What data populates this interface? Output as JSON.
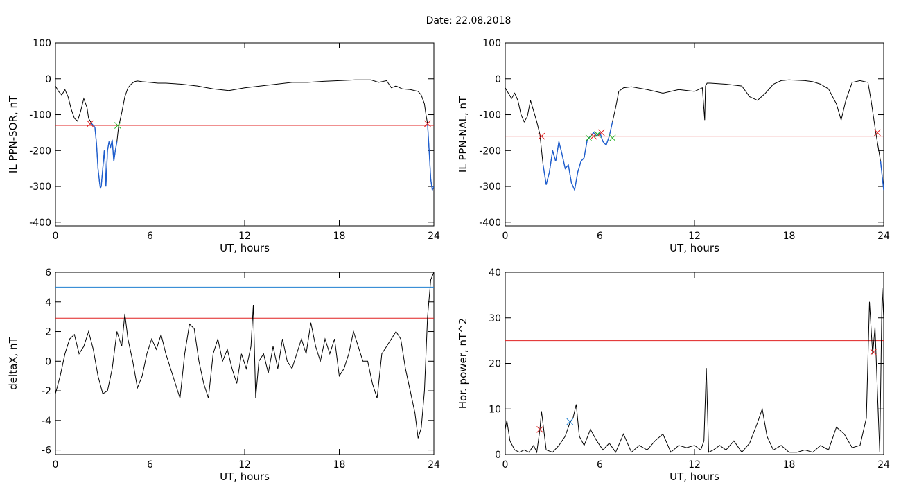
{
  "figure": {
    "title": "Date:  22.08.2018"
  },
  "chart_data": [
    {
      "type": "line",
      "xlabel": "UT, hours",
      "ylabel": "IL PPN-SOR, nT",
      "xlim": [
        0,
        24
      ],
      "ylim": [
        -410,
        100
      ],
      "xticks": [
        0,
        6,
        12,
        18,
        24
      ],
      "yticks": [
        100,
        0,
        -100,
        -200,
        -300,
        -400
      ],
      "grid": false,
      "x": [
        0,
        0.2,
        0.4,
        0.6,
        0.8,
        1.0,
        1.2,
        1.4,
        1.6,
        1.8,
        2.0,
        2.1,
        2.3,
        2.5,
        2.6,
        2.7,
        2.8,
        2.85,
        2.9,
        3.0,
        3.1,
        3.15,
        3.2,
        3.3,
        3.4,
        3.5,
        3.6,
        3.7,
        3.8,
        3.9,
        4.0,
        4.2,
        4.4,
        4.6,
        4.8,
        5.0,
        5.2,
        5.5,
        6.0,
        6.5,
        7.0,
        8.0,
        9.0,
        10.0,
        11.0,
        12.0,
        13.0,
        14.0,
        15.0,
        16.0,
        17.0,
        18.0,
        19.0,
        20.0,
        20.5,
        21.0,
        21.3,
        21.6,
        22.0,
        22.5,
        23.0,
        23.2,
        23.4,
        23.5,
        23.6,
        23.7,
        23.8,
        23.9,
        24.0
      ],
      "y": [
        -20,
        -35,
        -45,
        -30,
        -50,
        -85,
        -110,
        -118,
        -90,
        -55,
        -80,
        -110,
        -125,
        -135,
        -180,
        -250,
        -290,
        -305,
        -300,
        -250,
        -200,
        -240,
        -300,
        -200,
        -175,
        -190,
        -170,
        -230,
        -200,
        -175,
        -135,
        -95,
        -50,
        -25,
        -15,
        -8,
        -6,
        -8,
        -10,
        -12,
        -12,
        -15,
        -20,
        -28,
        -33,
        -25,
        -20,
        -15,
        -10,
        -10,
        -7,
        -5,
        -3,
        -3,
        -10,
        -5,
        -25,
        -20,
        -28,
        -30,
        -35,
        -45,
        -70,
        -100,
        -125,
        -200,
        -280,
        -310,
        -300
      ],
      "threshold": -130,
      "markers": [
        {
          "x": 2.2,
          "y": -125,
          "color": "#e02020"
        },
        {
          "x": 3.95,
          "y": -130,
          "color": "#20b020"
        },
        {
          "x": 23.6,
          "y": -125,
          "color": "#e02020"
        }
      ],
      "highlight_ranges": [
        [
          2.2,
          3.95
        ],
        [
          23.6,
          24.0
        ]
      ],
      "colors": {
        "line": "#000000",
        "threshold": "#e02020",
        "highlight": "#1f5fd0"
      }
    },
    {
      "type": "line",
      "xlabel": "UT, hours",
      "ylabel": "IL PPN-NAL, nT",
      "xlim": [
        0,
        24
      ],
      "ylim": [
        -410,
        100
      ],
      "xticks": [
        0,
        6,
        12,
        18,
        24
      ],
      "yticks": [
        100,
        0,
        -100,
        -200,
        -300,
        -400
      ],
      "grid": false,
      "x": [
        0,
        0.2,
        0.4,
        0.6,
        0.8,
        1.0,
        1.2,
        1.4,
        1.6,
        1.8,
        2.0,
        2.2,
        2.4,
        2.6,
        2.8,
        3.0,
        3.2,
        3.4,
        3.6,
        3.8,
        4.0,
        4.2,
        4.4,
        4.6,
        4.8,
        5.0,
        5.2,
        5.4,
        5.6,
        5.8,
        6.0,
        6.2,
        6.4,
        6.6,
        6.8,
        7.0,
        7.2,
        7.5,
        8.0,
        9.0,
        10.0,
        11.0,
        12.0,
        12.5,
        12.65,
        12.7,
        12.8,
        13.0,
        14.0,
        15.0,
        15.5,
        16.0,
        16.5,
        17.0,
        17.5,
        18.0,
        19.0,
        19.5,
        20.0,
        20.5,
        21.0,
        21.3,
        21.6,
        22.0,
        22.5,
        23.0,
        23.2,
        23.5,
        23.8,
        24.0
      ],
      "y": [
        -25,
        -40,
        -55,
        -40,
        -60,
        -100,
        -120,
        -105,
        -60,
        -90,
        -120,
        -155,
        -240,
        -295,
        -260,
        -200,
        -230,
        -175,
        -210,
        -250,
        -240,
        -290,
        -310,
        -260,
        -230,
        -220,
        -170,
        -160,
        -150,
        -160,
        -150,
        -175,
        -185,
        -160,
        -120,
        -80,
        -35,
        -25,
        -22,
        -30,
        -40,
        -30,
        -35,
        -25,
        -115,
        -20,
        -12,
        -12,
        -15,
        -20,
        -50,
        -60,
        -40,
        -15,
        -5,
        -3,
        -5,
        -8,
        -15,
        -28,
        -70,
        -115,
        -60,
        -10,
        -5,
        -10,
        -60,
        -150,
        -230,
        -310
      ],
      "threshold": -160,
      "markers": [
        {
          "x": 2.3,
          "y": -160,
          "color": "#e02020"
        },
        {
          "x": 5.3,
          "y": -165,
          "color": "#20b020"
        },
        {
          "x": 5.6,
          "y": -160,
          "color": "#e02020"
        },
        {
          "x": 5.85,
          "y": -155,
          "color": "#20b020"
        },
        {
          "x": 6.1,
          "y": -150,
          "color": "#e02020"
        },
        {
          "x": 6.8,
          "y": -165,
          "color": "#20b020"
        },
        {
          "x": 23.6,
          "y": -150,
          "color": "#e02020"
        }
      ],
      "highlight_ranges": [
        [
          2.3,
          6.8
        ],
        [
          23.6,
          24.0
        ]
      ],
      "colors": {
        "line": "#000000",
        "threshold": "#e02020",
        "highlight": "#1f5fd0"
      }
    },
    {
      "type": "line",
      "xlabel": "UT, hours",
      "ylabel": "deltaX, nT",
      "xlim": [
        0,
        24
      ],
      "ylim": [
        -6.3,
        6.0
      ],
      "xticks": [
        0,
        6,
        12,
        18,
        24
      ],
      "yticks": [
        6,
        4,
        2,
        0,
        -2,
        -4,
        -6
      ],
      "grid": false,
      "x": [
        0,
        0.3,
        0.6,
        0.9,
        1.2,
        1.5,
        1.8,
        2.1,
        2.4,
        2.7,
        3.0,
        3.3,
        3.6,
        3.9,
        4.2,
        4.4,
        4.6,
        4.9,
        5.2,
        5.5,
        5.8,
        6.1,
        6.4,
        6.7,
        7.0,
        7.3,
        7.6,
        7.9,
        8.2,
        8.5,
        8.8,
        9.1,
        9.4,
        9.7,
        10.0,
        10.3,
        10.6,
        10.9,
        11.2,
        11.5,
        11.8,
        12.1,
        12.4,
        12.55,
        12.7,
        12.9,
        13.2,
        13.5,
        13.8,
        14.1,
        14.4,
        14.7,
        15.0,
        15.3,
        15.6,
        15.9,
        16.2,
        16.5,
        16.8,
        17.1,
        17.4,
        17.7,
        18.0,
        18.3,
        18.6,
        18.9,
        19.2,
        19.5,
        19.8,
        20.1,
        20.4,
        20.7,
        21.0,
        21.3,
        21.6,
        21.9,
        22.2,
        22.5,
        22.8,
        23.0,
        23.2,
        23.4,
        23.6,
        23.8,
        24.0
      ],
      "y": [
        -2.2,
        -1.0,
        0.5,
        1.5,
        1.8,
        0.5,
        1.0,
        2.0,
        0.8,
        -1.0,
        -2.2,
        -2.0,
        -0.5,
        2.0,
        1.0,
        3.2,
        1.5,
        0.0,
        -1.8,
        -1.0,
        0.5,
        1.5,
        0.8,
        1.8,
        0.5,
        -0.5,
        -1.5,
        -2.5,
        0.5,
        2.5,
        2.2,
        0.0,
        -1.5,
        -2.5,
        0.5,
        1.5,
        0.0,
        0.8,
        -0.5,
        -1.5,
        0.5,
        -0.5,
        1.0,
        3.8,
        -2.5,
        0.0,
        0.5,
        -0.8,
        1.0,
        -0.5,
        1.5,
        0.0,
        -0.5,
        0.5,
        1.5,
        0.5,
        2.6,
        1.0,
        0.0,
        1.5,
        0.5,
        1.5,
        -1.0,
        -0.5,
        0.5,
        2.0,
        1.0,
        0.0,
        0.0,
        -1.5,
        -2.5,
        0.5,
        1.0,
        1.5,
        2.0,
        1.5,
        -0.5,
        -2.0,
        -3.5,
        -5.2,
        -4.5,
        -2.0,
        3.0,
        5.5,
        6.0
      ],
      "thresholds": [
        {
          "y": 2.9,
          "color": "#e02020"
        },
        {
          "y": 5.0,
          "color": "#1f7fd0"
        }
      ],
      "colors": {
        "line": "#000000"
      }
    },
    {
      "type": "line",
      "xlabel": "UT, hours",
      "ylabel": "Hor. power, nT^2",
      "xlim": [
        0,
        24
      ],
      "ylim": [
        0,
        40
      ],
      "xticks": [
        0,
        6,
        12,
        18,
        24
      ],
      "yticks": [
        40,
        30,
        20,
        10,
        0
      ],
      "grid": false,
      "x": [
        0,
        0.1,
        0.3,
        0.6,
        0.9,
        1.2,
        1.5,
        1.8,
        2.0,
        2.2,
        2.3,
        2.6,
        3.0,
        3.4,
        3.8,
        4.1,
        4.3,
        4.5,
        4.7,
        5.0,
        5.4,
        5.8,
        6.2,
        6.6,
        7.0,
        7.5,
        8.0,
        8.5,
        9.0,
        9.5,
        10.0,
        10.5,
        11.0,
        11.5,
        12.0,
        12.4,
        12.6,
        12.75,
        12.9,
        13.2,
        13.6,
        14.0,
        14.5,
        15.0,
        15.5,
        16.0,
        16.3,
        16.6,
        17.0,
        17.5,
        18.0,
        18.5,
        19.0,
        19.5,
        20.0,
        20.5,
        21.0,
        21.5,
        22.0,
        22.5,
        22.9,
        23.1,
        23.3,
        23.45,
        23.6,
        23.75,
        23.9,
        24.0
      ],
      "y": [
        5.5,
        7.5,
        3.0,
        1.0,
        0.5,
        1.0,
        0.5,
        2.0,
        0.5,
        5.5,
        9.5,
        1.0,
        0.5,
        2.0,
        4.0,
        7.0,
        8.0,
        11.0,
        4.0,
        2.0,
        5.5,
        3.0,
        1.0,
        2.5,
        0.5,
        4.5,
        0.5,
        2.0,
        1.0,
        3.0,
        4.5,
        0.5,
        2.0,
        1.5,
        2.0,
        1.0,
        3.0,
        19.0,
        0.5,
        1.0,
        2.0,
        1.0,
        3.0,
        0.5,
        2.5,
        7.0,
        10.0,
        4.0,
        1.0,
        2.0,
        0.5,
        0.5,
        1.0,
        0.5,
        2.0,
        1.0,
        6.0,
        4.5,
        1.5,
        2.0,
        8.0,
        33.5,
        22.0,
        28.0,
        14.0,
        0.5,
        36.5,
        30.0
      ],
      "threshold": 25,
      "markers": [
        {
          "x": 2.2,
          "y": 5.5,
          "color": "#e02020"
        },
        {
          "x": 4.1,
          "y": 7.2,
          "color": "#1f7fd0"
        },
        {
          "x": 23.35,
          "y": 22.5,
          "color": "#e02020"
        }
      ],
      "colors": {
        "line": "#000000",
        "threshold": "#e02020"
      }
    }
  ]
}
